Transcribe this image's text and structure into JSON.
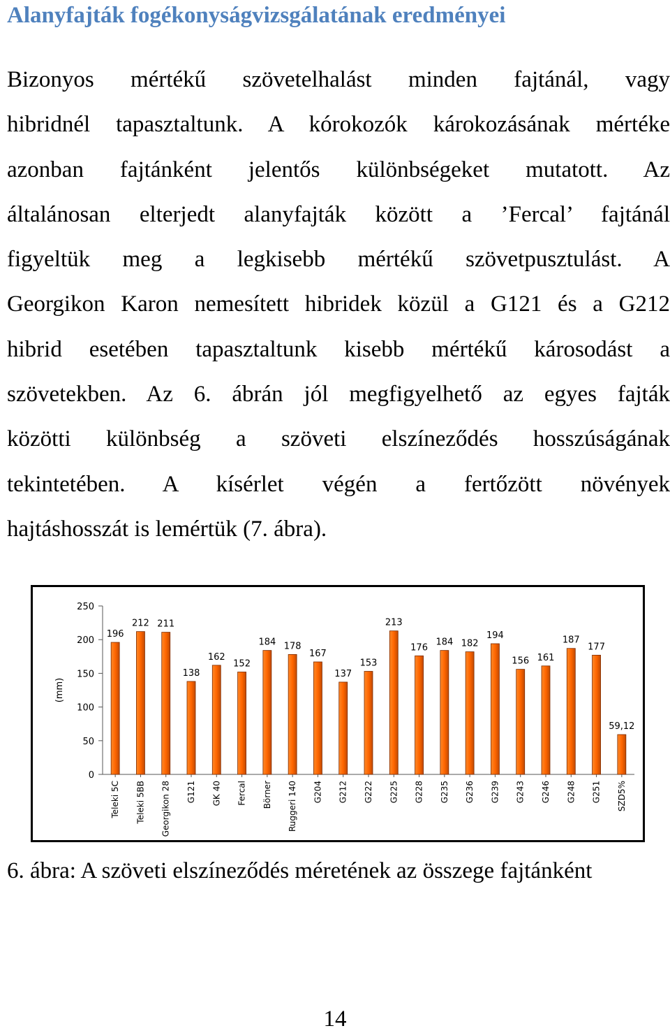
{
  "heading": "Alanyfajták fogékonyságvizsgálatának eredményei",
  "paragraph_lines": [
    "Bizonyos mértékű szövetelhalást minden fajtánál, vagy",
    "hibridnél tapasztaltunk. A kórokozók károkozásának mértéke",
    "azonban fajtánként jelentős különbségeket mutatott. Az",
    "általánosan elterjedt alanyfajták között a ’Fercal’ fajtánál",
    "figyeltük meg a legkisebb mértékű szövetpusztulást. A",
    "Georgikon Karon nemesített hibridek közül a G121 és a G212",
    "hibrid esetében tapasztaltunk kisebb mértékű károsodást a",
    "szövetekben. Az 6. ábrán jól megfigyelhető az egyes fajták",
    "közötti különbség a szöveti elszíneződés hosszúságának",
    "tekintetében. A kísérlet végén a fertőzött növények",
    "hajtáshosszát is lemértük (7. ábra)."
  ],
  "chart_data": {
    "type": "bar",
    "title": "",
    "xlabel": "",
    "ylabel": "(mm)",
    "ylim": [
      0,
      250
    ],
    "yticks": [
      0,
      50,
      100,
      150,
      200,
      250
    ],
    "grid": false,
    "legend": "none",
    "bar_color": "#ff6600",
    "bar_outline": "#7a2a00",
    "categories": [
      "Teleki 5C",
      "Teleki 5BB",
      "Georgikon 28",
      "G121",
      "GK 40",
      "Fercal",
      "Börner",
      "Ruggeri 140",
      "G204",
      "G212",
      "G222",
      "G225",
      "G228",
      "G235",
      "G236",
      "G239",
      "G243",
      "G246",
      "G248",
      "G251",
      "SZD5%"
    ],
    "values": [
      196,
      212,
      211,
      138,
      162,
      152,
      184,
      178,
      167,
      137,
      153,
      213,
      176,
      184,
      182,
      194,
      156,
      161,
      187,
      177,
      59.12
    ],
    "data_labels": [
      "196",
      "212",
      "211",
      "138",
      "162",
      "152",
      "184",
      "178",
      "167",
      "137",
      "153",
      "213",
      "176",
      "184",
      "182",
      "194",
      "156",
      "161",
      "187",
      "177",
      "59,12"
    ]
  },
  "caption": "6. ábra: A szöveti elszíneződés méretének az összege fajtánként",
  "page_number": "14"
}
